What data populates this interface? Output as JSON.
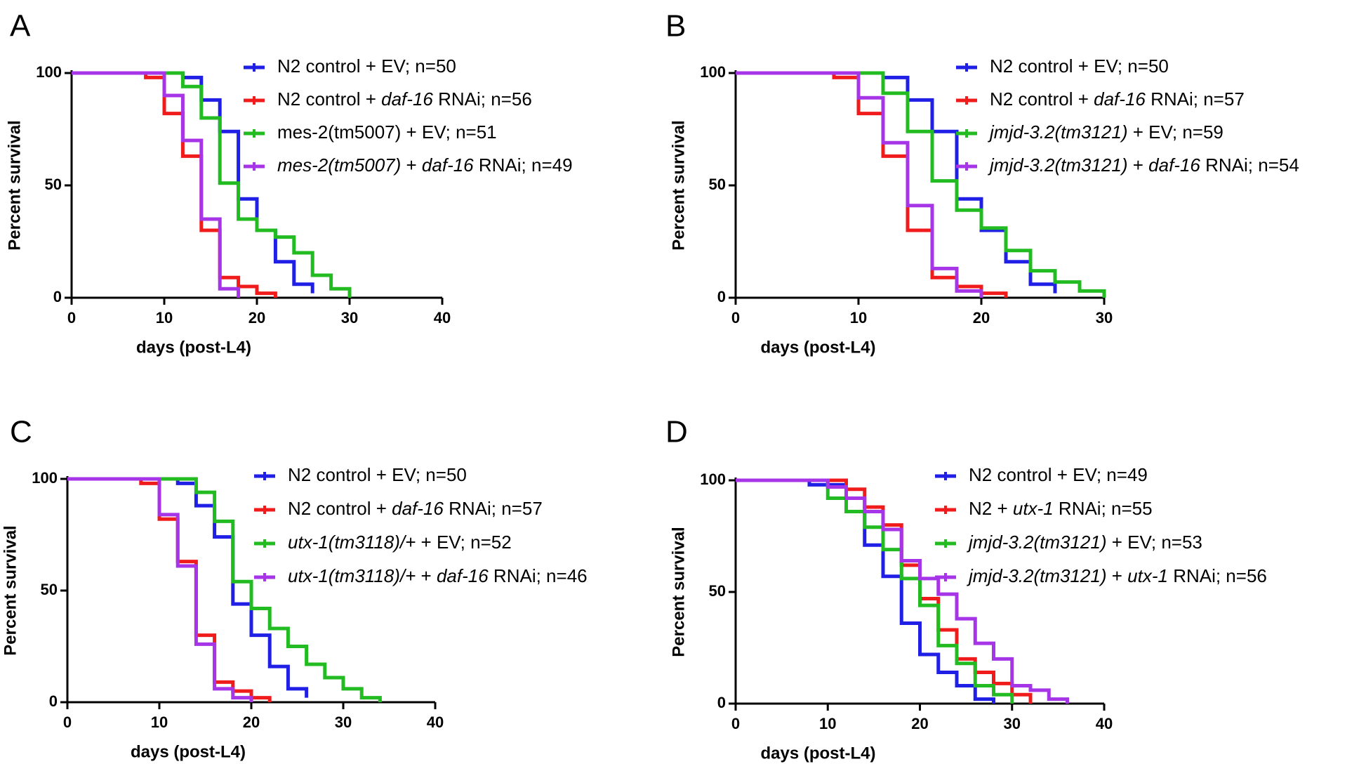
{
  "figure": {
    "colors": {
      "blue": "#1f1fe6",
      "red": "#f01c1c",
      "green": "#22bb22",
      "purple": "#a535e6"
    }
  },
  "chart_data": [
    {
      "type": "line",
      "panel": "A",
      "title": "",
      "xlabel": "days (post-L4)",
      "ylabel": "Percent survival",
      "xlim": [
        0,
        40
      ],
      "ylim": [
        0,
        100
      ],
      "xticks": [
        0,
        10,
        20,
        30,
        40
      ],
      "yticks": [
        0,
        50,
        100
      ],
      "series": [
        {
          "name": "N2 control + EV; n=50",
          "color": "#1f1fe6",
          "legend_parts": [
            {
              "t": "N2 control + EV; n=50",
              "i": false
            }
          ],
          "x": [
            0,
            12,
            14,
            16,
            18,
            20,
            22,
            24,
            26
          ],
          "values": [
            100,
            98,
            88,
            74,
            44,
            30,
            16,
            6,
            2
          ]
        },
        {
          "name": "N2 control + daf-16 RNAi; n=56",
          "color": "#f01c1c",
          "legend_parts": [
            {
              "t": "N2 control + ",
              "i": false
            },
            {
              "t": "daf-16",
              "i": true
            },
            {
              "t": " RNAi; n=56",
              "i": false
            }
          ],
          "x": [
            0,
            8,
            10,
            12,
            14,
            16,
            18,
            20,
            22
          ],
          "values": [
            100,
            98,
            82,
            63,
            30,
            9,
            5,
            2,
            0
          ]
        },
        {
          "name": "mes-2(tm5007) + EV; n=51",
          "color": "#22bb22",
          "legend_parts": [
            {
              "t": "mes-2(tm5007) + EV; n=51",
              "i": false
            }
          ],
          "x": [
            0,
            12,
            14,
            16,
            18,
            20,
            22,
            24,
            26,
            28,
            30
          ],
          "values": [
            100,
            94,
            80,
            51,
            35,
            30,
            27,
            20,
            10,
            4,
            0
          ]
        },
        {
          "name": "mes-2(tm5007) + daf-16 RNAi; n=49",
          "color": "#a535e6",
          "legend_parts": [
            {
              "t": "mes-2(tm5007)",
              "i": true
            },
            {
              "t": " + ",
              "i": false
            },
            {
              "t": "daf-16",
              "i": true
            },
            {
              "t": " RNAi; n=49",
              "i": false
            }
          ],
          "x": [
            0,
            10,
            12,
            14,
            16,
            18
          ],
          "values": [
            100,
            90,
            70,
            35,
            4,
            0
          ]
        }
      ]
    },
    {
      "type": "line",
      "panel": "B",
      "title": "",
      "xlabel": "days (post-L4)",
      "ylabel": "Percent survival",
      "xlim": [
        0,
        30
      ],
      "ylim": [
        0,
        100
      ],
      "xticks": [
        0,
        10,
        20,
        30
      ],
      "yticks": [
        0,
        50,
        100
      ],
      "series": [
        {
          "name": "N2 control + EV; n=50",
          "color": "#1f1fe6",
          "legend_parts": [
            {
              "t": "N2 control + EV; n=50",
              "i": false
            }
          ],
          "x": [
            0,
            12,
            14,
            16,
            18,
            20,
            22,
            24,
            26
          ],
          "values": [
            100,
            98,
            88,
            74,
            44,
            30,
            16,
            6,
            2
          ]
        },
        {
          "name": "N2 control + daf-16 RNAi; n=57",
          "color": "#f01c1c",
          "legend_parts": [
            {
              "t": "N2 control + ",
              "i": false
            },
            {
              "t": "daf-16",
              "i": true
            },
            {
              "t": " RNAi; n=57",
              "i": false
            }
          ],
          "x": [
            0,
            8,
            10,
            12,
            14,
            16,
            18,
            20,
            22
          ],
          "values": [
            100,
            98,
            82,
            63,
            30,
            9,
            5,
            2,
            0
          ]
        },
        {
          "name": "jmjd-3.2(tm3121) + EV; n=59",
          "color": "#22bb22",
          "legend_parts": [
            {
              "t": "jmjd-3.2(tm3121)",
              "i": true
            },
            {
              "t": " + EV; n=59",
              "i": false
            }
          ],
          "x": [
            0,
            12,
            14,
            16,
            18,
            20,
            22,
            24,
            26,
            28,
            30
          ],
          "values": [
            100,
            91,
            74,
            52,
            39,
            31,
            21,
            12,
            7,
            3,
            0
          ]
        },
        {
          "name": "jmjd-3.2(tm3121) + daf-16 RNAi; n=54",
          "color": "#a535e6",
          "legend_parts": [
            {
              "t": "jmjd-3.2(tm3121)",
              "i": true
            },
            {
              "t": " + ",
              "i": false
            },
            {
              "t": "daf-16",
              "i": true
            },
            {
              "t": " RNAi; n=54",
              "i": false
            }
          ],
          "x": [
            0,
            10,
            12,
            14,
            16,
            18,
            20
          ],
          "values": [
            100,
            89,
            69,
            41,
            13,
            3,
            0
          ]
        }
      ]
    },
    {
      "type": "line",
      "panel": "C",
      "title": "",
      "xlabel": "days (post-L4)",
      "ylabel": "Percent survival",
      "xlim": [
        0,
        40
      ],
      "ylim": [
        0,
        100
      ],
      "xticks": [
        0,
        10,
        20,
        30,
        40
      ],
      "yticks": [
        0,
        50,
        100
      ],
      "series": [
        {
          "name": "N2 control + EV; n=50",
          "color": "#1f1fe6",
          "legend_parts": [
            {
              "t": "N2 control + EV; n=50",
              "i": false
            }
          ],
          "x": [
            0,
            12,
            14,
            16,
            18,
            20,
            22,
            24,
            26
          ],
          "values": [
            100,
            98,
            88,
            74,
            44,
            30,
            16,
            6,
            2
          ]
        },
        {
          "name": "N2 control + daf-16 RNAi; n=57",
          "color": "#f01c1c",
          "legend_parts": [
            {
              "t": "N2 control + ",
              "i": false
            },
            {
              "t": "daf-16",
              "i": true
            },
            {
              "t": " RNAi; n=57",
              "i": false
            }
          ],
          "x": [
            0,
            8,
            10,
            12,
            14,
            16,
            18,
            20,
            22
          ],
          "values": [
            100,
            98,
            82,
            63,
            30,
            9,
            5,
            2,
            0
          ]
        },
        {
          "name": "utx-1(tm3118)/+ + EV; n=52",
          "color": "#22bb22",
          "legend_parts": [
            {
              "t": "utx-1(tm3118)/+",
              "i": true
            },
            {
              "t": " + EV; n=52",
              "i": false
            }
          ],
          "x": [
            0,
            14,
            16,
            18,
            20,
            22,
            24,
            26,
            28,
            30,
            32,
            34
          ],
          "values": [
            100,
            94,
            81,
            54,
            42,
            33,
            25,
            17,
            11,
            6,
            2,
            0
          ]
        },
        {
          "name": "utx-1(tm3118)/+ + daf-16 RNAi; n=46",
          "color": "#a535e6",
          "legend_parts": [
            {
              "t": "utx-1(tm3118)/+",
              "i": true
            },
            {
              "t": " + ",
              "i": false
            },
            {
              "t": "daf-16",
              "i": true
            },
            {
              "t": " RNAi; n=46",
              "i": false
            }
          ],
          "x": [
            0,
            10,
            12,
            14,
            16,
            18,
            20
          ],
          "values": [
            100,
            84,
            61,
            26,
            6,
            2,
            0
          ]
        }
      ]
    },
    {
      "type": "line",
      "panel": "D",
      "title": "",
      "xlabel": "days (post-L4)",
      "ylabel": "Percent survival",
      "xlim": [
        0,
        40
      ],
      "ylim": [
        0,
        100
      ],
      "xticks": [
        0,
        10,
        20,
        30,
        40
      ],
      "yticks": [
        0,
        50,
        100
      ],
      "series": [
        {
          "name": "N2 control + EV; n=49",
          "color": "#1f1fe6",
          "legend_parts": [
            {
              "t": "N2 control + EV; n=49",
              "i": false
            }
          ],
          "x": [
            0,
            8,
            12,
            14,
            16,
            18,
            20,
            22,
            24,
            26,
            28
          ],
          "values": [
            100,
            98,
            86,
            71,
            57,
            36,
            22,
            14,
            8,
            2,
            0
          ]
        },
        {
          "name": "N2 + utx-1 RNAi; n=55",
          "color": "#f01c1c",
          "legend_parts": [
            {
              "t": "N2 + ",
              "i": false
            },
            {
              "t": "utx-1",
              "i": true
            },
            {
              "t": " RNAi; n=55",
              "i": false
            }
          ],
          "x": [
            0,
            12,
            14,
            16,
            18,
            20,
            22,
            24,
            26,
            28,
            30,
            32
          ],
          "values": [
            100,
            96,
            88,
            80,
            62,
            47,
            33,
            20,
            14,
            9,
            4,
            0
          ]
        },
        {
          "name": "jmjd-3.2(tm3121) + EV; n=53",
          "color": "#22bb22",
          "legend_parts": [
            {
              "t": "jmjd-3.2(tm3121)",
              "i": true
            },
            {
              "t": " + EV; n=53",
              "i": false
            }
          ],
          "x": [
            0,
            10,
            12,
            14,
            16,
            18,
            20,
            22,
            24,
            26,
            28,
            30
          ],
          "values": [
            100,
            92,
            86,
            79,
            69,
            56,
            44,
            26,
            18,
            8,
            4,
            0
          ]
        },
        {
          "name": "jmjd-3.2(tm3121) + utx-1 RNAi; n=56",
          "color": "#a535e6",
          "legend_parts": [
            {
              "t": "jmjd-3.2(tm3121)",
              "i": true
            },
            {
              "t": " + ",
              "i": false
            },
            {
              "t": "utx-1",
              "i": true
            },
            {
              "t": " RNAi; n=56",
              "i": false
            }
          ],
          "x": [
            0,
            10,
            12,
            14,
            16,
            18,
            20,
            22,
            24,
            26,
            28,
            30,
            32,
            34,
            36
          ],
          "values": [
            100,
            97,
            92,
            86,
            78,
            64,
            56,
            49,
            38,
            27,
            20,
            8,
            6,
            2,
            0
          ]
        }
      ]
    }
  ]
}
